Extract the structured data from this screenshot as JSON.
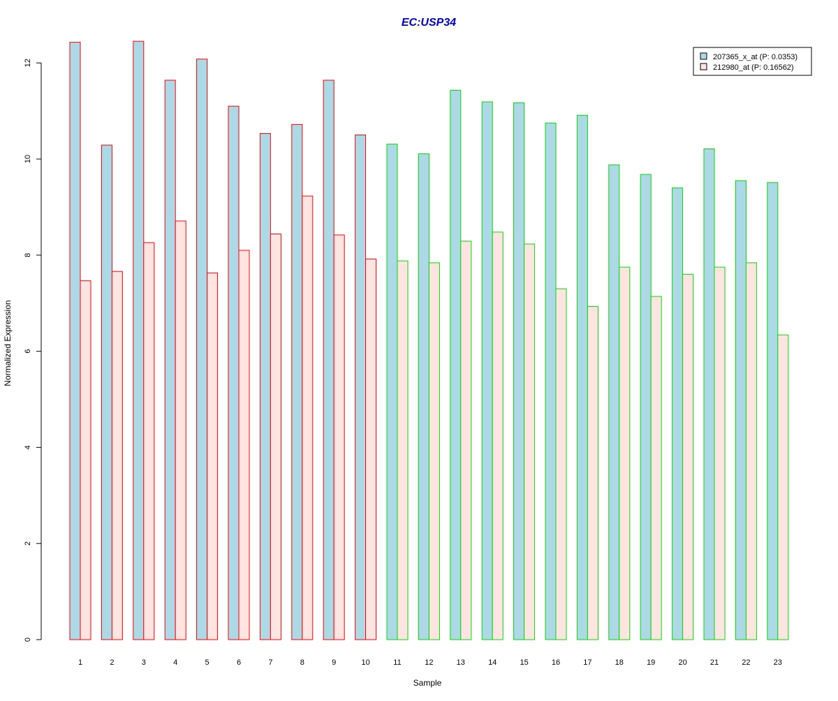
{
  "chart_data": {
    "type": "bar",
    "title": "EC:USP34",
    "title_color": "#0000cc",
    "xlabel": "Sample",
    "ylabel": "Normalized Expression",
    "ylim": [
      0,
      12.5
    ],
    "yticks": [
      0,
      2,
      4,
      6,
      8,
      10,
      12
    ],
    "categories": [
      "1",
      "2",
      "3",
      "4",
      "5",
      "6",
      "7",
      "8",
      "9",
      "10",
      "11",
      "12",
      "13",
      "14",
      "15",
      "16",
      "17",
      "18",
      "19",
      "20",
      "21",
      "22",
      "23"
    ],
    "group_border_colors": [
      "#ff0000",
      "#ff0000",
      "#ff0000",
      "#ff0000",
      "#ff0000",
      "#ff0000",
      "#ff0000",
      "#ff0000",
      "#ff0000",
      "#ff0000",
      "#00dd00",
      "#00dd00",
      "#00dd00",
      "#00dd00",
      "#00dd00",
      "#00dd00",
      "#00dd00",
      "#00dd00",
      "#00dd00",
      "#00dd00",
      "#00dd00",
      "#00dd00",
      "#00dd00"
    ],
    "series": [
      {
        "name": "207365_x_at (P: 0.0353)",
        "fill": "#add8e6",
        "values": [
          12.43,
          10.29,
          12.45,
          11.64,
          12.08,
          11.1,
          10.53,
          10.72,
          11.64,
          10.5,
          10.31,
          10.11,
          11.43,
          11.19,
          11.17,
          10.75,
          10.91,
          9.88,
          9.68,
          9.4,
          10.21,
          9.55,
          9.51
        ]
      },
      {
        "name": "212980_at (P: 0.16562)",
        "fill": "#ffe4e1",
        "values": [
          7.47,
          7.66,
          8.26,
          8.71,
          7.63,
          8.1,
          8.44,
          9.23,
          8.42,
          7.92,
          7.88,
          7.84,
          8.29,
          8.48,
          8.23,
          7.3,
          6.93,
          7.75,
          7.14,
          7.6,
          7.75,
          7.84,
          6.34
        ]
      }
    ],
    "legend_position": "top-right"
  }
}
